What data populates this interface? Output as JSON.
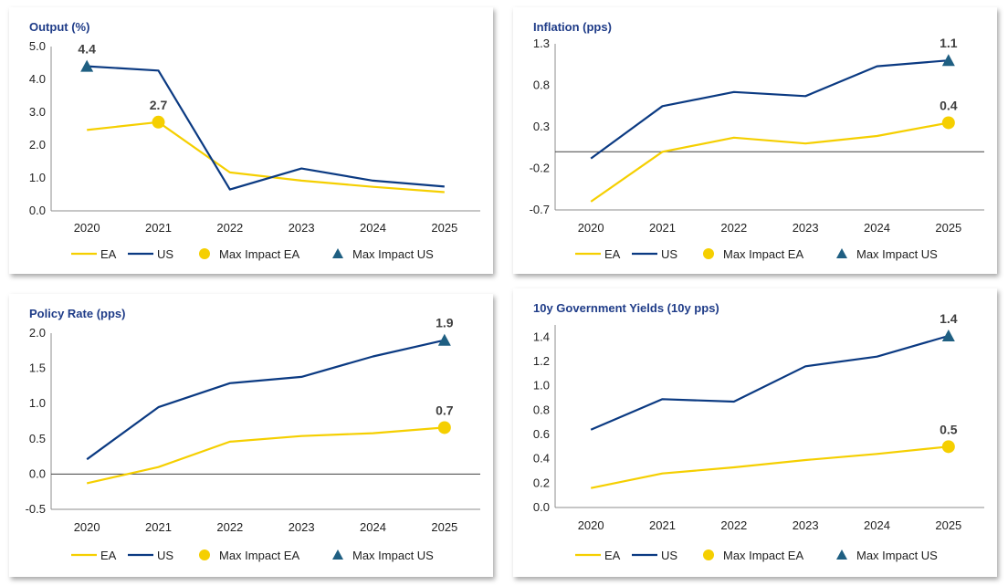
{
  "chart_data": [
    {
      "type": "line",
      "title": "Output (%)",
      "categories": [
        "2020",
        "2021",
        "2022",
        "2023",
        "2024",
        "2025"
      ],
      "yticks": [
        "5.0",
        "4.0",
        "3.0",
        "2.0",
        "1.0",
        "0.0"
      ],
      "ylim": [
        0,
        5
      ],
      "series": [
        {
          "name": "EA",
          "color": "#f5cf00",
          "values": [
            2.46,
            2.7,
            1.17,
            0.92,
            0.73,
            0.57
          ]
        },
        {
          "name": "US",
          "color": "#0b3a82",
          "values": [
            4.4,
            4.27,
            0.65,
            1.29,
            0.92,
            0.74
          ]
        }
      ],
      "markers": [
        {
          "name": "Max Impact EA",
          "series": "EA",
          "shape": "circle",
          "color": "#f5cf00",
          "category": "2021",
          "value": 2.7,
          "label": "2.7"
        },
        {
          "name": "Max Impact US",
          "series": "US",
          "shape": "triangle",
          "color": "#1f5f82",
          "category": "2020",
          "value": 4.4,
          "label": "4.4"
        }
      ],
      "zero_line": false,
      "legend": [
        "EA",
        "US",
        "Max Impact EA",
        "Max Impact US"
      ],
      "legend_position": "bottom"
    },
    {
      "type": "line",
      "title": "Inflation (pps)",
      "categories": [
        "2020",
        "2021",
        "2022",
        "2023",
        "2024",
        "2025"
      ],
      "yticks": [
        "1.3",
        "0.8",
        "0.3",
        "-0.2",
        "-0.7"
      ],
      "ylim": [
        -0.7,
        1.3
      ],
      "series": [
        {
          "name": "EA",
          "color": "#f5cf00",
          "values": [
            -0.6,
            0.0,
            0.17,
            0.1,
            0.19,
            0.35
          ]
        },
        {
          "name": "US",
          "color": "#0b3a82",
          "values": [
            -0.08,
            0.55,
            0.72,
            0.67,
            1.03,
            1.1
          ]
        }
      ],
      "markers": [
        {
          "name": "Max Impact EA",
          "series": "EA",
          "shape": "circle",
          "color": "#f5cf00",
          "category": "2025",
          "value": 0.35,
          "label": "0.4"
        },
        {
          "name": "Max Impact US",
          "series": "US",
          "shape": "triangle",
          "color": "#1f5f82",
          "category": "2025",
          "value": 1.1,
          "label": "1.1"
        }
      ],
      "zero_line": true,
      "legend": [
        "EA",
        "US",
        "Max Impact EA",
        "Max Impact US"
      ],
      "legend_position": "bottom"
    },
    {
      "type": "line",
      "title": "Policy Rate (pps)",
      "categories": [
        "2020",
        "2021",
        "2022",
        "2023",
        "2024",
        "2025"
      ],
      "yticks": [
        "2.0",
        "1.5",
        "1.0",
        "0.5",
        "0.0",
        "-0.5"
      ],
      "ylim": [
        -0.5,
        2.0
      ],
      "series": [
        {
          "name": "EA",
          "color": "#f5cf00",
          "values": [
            -0.13,
            0.1,
            0.46,
            0.54,
            0.58,
            0.66
          ]
        },
        {
          "name": "US",
          "color": "#0b3a82",
          "values": [
            0.21,
            0.95,
            1.29,
            1.38,
            1.67,
            1.9
          ]
        }
      ],
      "markers": [
        {
          "name": "Max Impact EA",
          "series": "EA",
          "shape": "circle",
          "color": "#f5cf00",
          "category": "2025",
          "value": 0.66,
          "label": "0.7"
        },
        {
          "name": "Max Impact US",
          "series": "US",
          "shape": "triangle",
          "color": "#1f5f82",
          "category": "2025",
          "value": 1.9,
          "label": "1.9"
        }
      ],
      "zero_line": true,
      "legend": [
        "EA",
        "US",
        "Max Impact EA",
        "Max Impact US"
      ],
      "legend_position": "bottom"
    },
    {
      "type": "line",
      "title": "10y Government Yields (10y pps)",
      "categories": [
        "2020",
        "2021",
        "2022",
        "2023",
        "2024",
        "2025"
      ],
      "yticks": [
        "1.4",
        "1.2",
        "1.0",
        "0.8",
        "0.6",
        "0.4",
        "0.2",
        "0.0"
      ],
      "ylim": [
        0,
        1.5
      ],
      "series": [
        {
          "name": "EA",
          "color": "#f5cf00",
          "values": [
            0.16,
            0.28,
            0.33,
            0.39,
            0.44,
            0.5
          ]
        },
        {
          "name": "US",
          "color": "#0b3a82",
          "values": [
            0.64,
            0.89,
            0.87,
            1.16,
            1.24,
            1.41
          ]
        }
      ],
      "markers": [
        {
          "name": "Max Impact EA",
          "series": "EA",
          "shape": "circle",
          "color": "#f5cf00",
          "category": "2025",
          "value": 0.5,
          "label": "0.5"
        },
        {
          "name": "Max Impact US",
          "series": "US",
          "shape": "triangle",
          "color": "#1f5f82",
          "category": "2025",
          "value": 1.41,
          "label": "1.4"
        }
      ],
      "zero_line": false,
      "legend": [
        "EA",
        "US",
        "Max Impact EA",
        "Max Impact US"
      ],
      "legend_position": "bottom"
    }
  ]
}
